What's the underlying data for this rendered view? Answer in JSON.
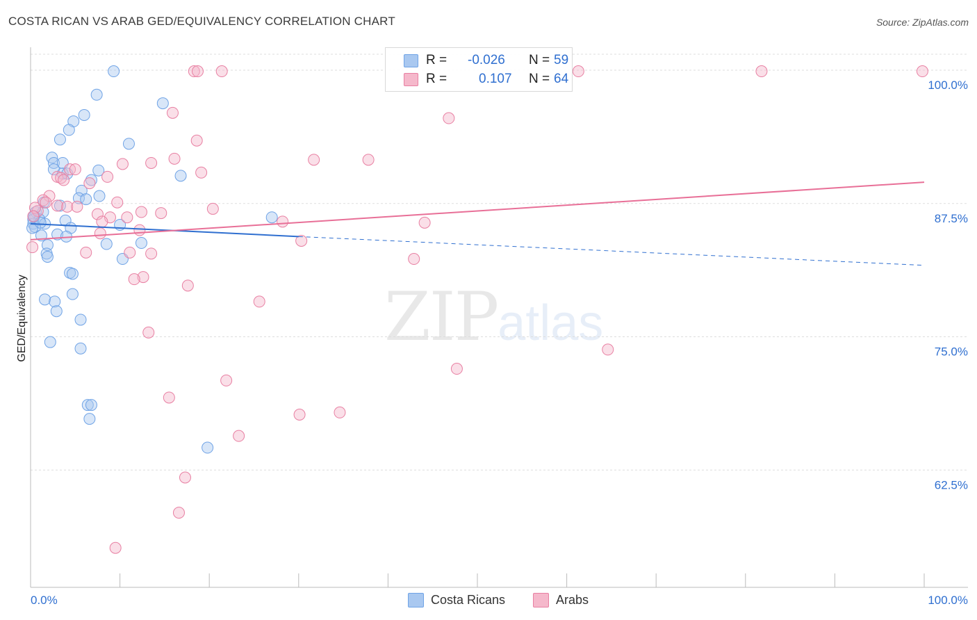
{
  "title": "COSTA RICAN VS ARAB GED/EQUIVALENCY CORRELATION CHART",
  "source": "Source: ZipAtlas.com",
  "watermark": {
    "zip": "ZIP",
    "atlas": "atlas"
  },
  "legend": {
    "rows": [
      {
        "label": "R =",
        "r": "-0.026",
        "n_label": "N =",
        "n": "59",
        "color": "#a9c8f0"
      },
      {
        "label": "R =",
        "r": "0.107",
        "n_label": "N =",
        "n": "64",
        "color": "#f5b8cb"
      }
    ]
  },
  "bottom_legend": [
    {
      "label": "Costa Ricans",
      "color": "#a9c8f0"
    },
    {
      "label": "Arabs",
      "color": "#f5b8cb"
    }
  ],
  "chart_data": {
    "type": "scatter",
    "title": "COSTA RICAN VS ARAB GED/EQUIVALENCY CORRELATION CHART",
    "xlabel": "",
    "ylabel": "GED/Equivalency",
    "xlim": [
      0,
      100
    ],
    "ylim": [
      51.5,
      101.5
    ],
    "x_tick_labels": [
      "0.0%",
      "100.0%"
    ],
    "y_ticks": [
      62.5,
      75.0,
      87.5,
      100.0
    ],
    "y_tick_labels": [
      "62.5%",
      "75.0%",
      "87.5%",
      "100.0%"
    ],
    "grid": true,
    "series": [
      {
        "name": "Costa Ricans",
        "color": "#6fa3e6",
        "fill": "#a9c8f0",
        "trend": {
          "x0": 0,
          "y0": 85.6,
          "x1": 30,
          "y1": 84.4,
          "dash_to_x": 100,
          "dash_to_y": 81.7,
          "color": "#2f6fd0"
        },
        "points": [
          [
            9.3,
            99.9
          ],
          [
            7.4,
            97.7
          ],
          [
            14.8,
            96.9
          ],
          [
            6.0,
            95.8
          ],
          [
            4.8,
            95.2
          ],
          [
            4.3,
            94.4
          ],
          [
            3.3,
            93.5
          ],
          [
            11.0,
            93.1
          ],
          [
            2.4,
            91.8
          ],
          [
            2.6,
            91.3
          ],
          [
            3.6,
            91.3
          ],
          [
            2.6,
            90.7
          ],
          [
            7.6,
            90.6
          ],
          [
            3.6,
            90.3
          ],
          [
            4.1,
            90.3
          ],
          [
            16.8,
            90.1
          ],
          [
            6.8,
            89.7
          ],
          [
            5.7,
            88.7
          ],
          [
            7.7,
            88.2
          ],
          [
            5.4,
            88.0
          ],
          [
            6.2,
            87.9
          ],
          [
            1.5,
            87.6
          ],
          [
            3.3,
            87.3
          ],
          [
            0.6,
            86.7
          ],
          [
            1.4,
            86.7
          ],
          [
            0.3,
            86.0
          ],
          [
            1.0,
            86.0
          ],
          [
            27.0,
            86.2
          ],
          [
            3.9,
            85.9
          ],
          [
            0.3,
            85.6
          ],
          [
            1.6,
            85.6
          ],
          [
            10.0,
            85.5
          ],
          [
            0.5,
            85.3
          ],
          [
            4.5,
            85.2
          ],
          [
            3.0,
            84.6
          ],
          [
            4.0,
            84.4
          ],
          [
            1.2,
            84.5
          ],
          [
            1.9,
            83.6
          ],
          [
            8.5,
            83.7
          ],
          [
            12.4,
            83.8
          ],
          [
            1.8,
            82.8
          ],
          [
            1.9,
            82.5
          ],
          [
            10.3,
            82.3
          ],
          [
            4.4,
            81.0
          ],
          [
            4.7,
            80.9
          ],
          [
            4.7,
            79.0
          ],
          [
            1.6,
            78.5
          ],
          [
            2.7,
            78.3
          ],
          [
            2.9,
            77.4
          ],
          [
            5.6,
            76.6
          ],
          [
            2.2,
            74.5
          ],
          [
            5.6,
            73.9
          ],
          [
            6.4,
            68.6
          ],
          [
            6.8,
            68.6
          ],
          [
            6.6,
            67.3
          ],
          [
            19.8,
            64.6
          ],
          [
            0.2,
            85.2
          ],
          [
            0.4,
            86.3
          ],
          [
            1.1,
            85.7
          ]
        ]
      },
      {
        "name": "Arabs",
        "color": "#e87fa2",
        "fill": "#f5b8cb",
        "trend": {
          "x0": 0,
          "y0": 84.1,
          "x1": 100,
          "y1": 89.5,
          "color": "#e86f97"
        },
        "points": [
          [
            18.3,
            99.9
          ],
          [
            18.7,
            99.9
          ],
          [
            21.4,
            99.9
          ],
          [
            61.3,
            99.9
          ],
          [
            81.8,
            99.9
          ],
          [
            99.8,
            99.9
          ],
          [
            15.9,
            96.0
          ],
          [
            46.8,
            95.5
          ],
          [
            18.6,
            93.4
          ],
          [
            31.7,
            91.6
          ],
          [
            37.8,
            91.6
          ],
          [
            16.1,
            91.7
          ],
          [
            13.5,
            91.3
          ],
          [
            10.3,
            91.2
          ],
          [
            4.4,
            90.7
          ],
          [
            5.0,
            90.7
          ],
          [
            19.1,
            90.4
          ],
          [
            3.0,
            90.0
          ],
          [
            8.6,
            90.0
          ],
          [
            3.4,
            89.9
          ],
          [
            3.7,
            89.7
          ],
          [
            6.6,
            89.4
          ],
          [
            2.1,
            88.2
          ],
          [
            1.4,
            87.8
          ],
          [
            1.7,
            87.6
          ],
          [
            9.7,
            87.6
          ],
          [
            3.0,
            87.3
          ],
          [
            4.1,
            87.2
          ],
          [
            5.2,
            87.2
          ],
          [
            20.4,
            87.0
          ],
          [
            0.8,
            86.8
          ],
          [
            12.4,
            86.7
          ],
          [
            14.6,
            86.6
          ],
          [
            7.5,
            86.5
          ],
          [
            8.9,
            86.2
          ],
          [
            10.8,
            86.2
          ],
          [
            8.0,
            85.8
          ],
          [
            28.2,
            85.8
          ],
          [
            44.1,
            85.7
          ],
          [
            12.2,
            85.0
          ],
          [
            7.8,
            84.7
          ],
          [
            30.3,
            84.0
          ],
          [
            0.2,
            83.4
          ],
          [
            6.2,
            82.9
          ],
          [
            11.1,
            82.9
          ],
          [
            13.5,
            82.8
          ],
          [
            42.9,
            82.3
          ],
          [
            12.6,
            80.6
          ],
          [
            11.6,
            80.4
          ],
          [
            17.6,
            79.8
          ],
          [
            25.6,
            78.3
          ],
          [
            13.2,
            75.4
          ],
          [
            64.6,
            73.8
          ],
          [
            47.7,
            72.0
          ],
          [
            21.9,
            70.9
          ],
          [
            15.5,
            69.3
          ],
          [
            34.6,
            67.9
          ],
          [
            30.1,
            67.7
          ],
          [
            23.3,
            65.7
          ],
          [
            17.3,
            61.8
          ],
          [
            16.6,
            58.5
          ],
          [
            9.5,
            55.2
          ],
          [
            0.5,
            87.1
          ],
          [
            0.3,
            86.3
          ]
        ]
      }
    ]
  }
}
